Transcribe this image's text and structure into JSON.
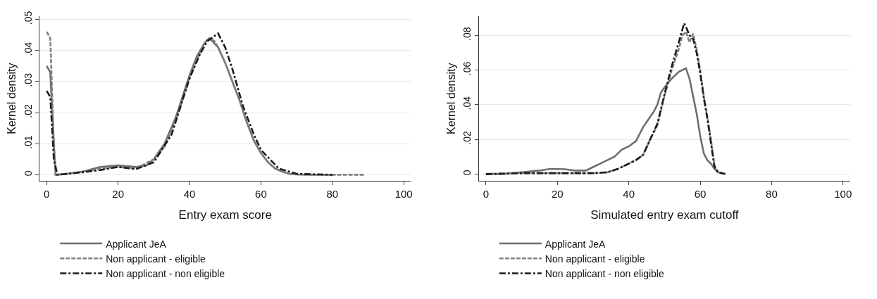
{
  "chart_data": [
    {
      "type": "line",
      "xlabel": "Entry exam score",
      "ylabel": "Kernel density",
      "xlim": [
        -2,
        102
      ],
      "ylim": [
        -0.002,
        0.051
      ],
      "xticks": [
        0,
        20,
        40,
        60,
        80,
        100
      ],
      "yticks": [
        0,
        {
          "value": 0.01,
          "label": ".01"
        },
        {
          "value": 0.02,
          "label": ".02"
        },
        {
          "value": 0.03,
          "label": ".03"
        },
        {
          "value": 0.04,
          "label": ".04"
        },
        {
          "value": 0.05,
          "label": ".05"
        }
      ],
      "grid": "y",
      "legend": "bottom",
      "series": [
        {
          "name": "Applicant JeA",
          "color": "#6e6e6e",
          "line_style": "solid",
          "x": [
            0,
            1,
            2,
            2.5,
            5,
            10,
            15,
            20,
            25,
            28,
            30,
            33,
            36,
            38,
            40,
            42,
            44,
            45,
            46,
            48,
            50,
            52,
            54,
            56,
            58,
            60,
            62,
            64,
            66,
            68,
            70,
            75,
            80
          ],
          "values": [
            0.035,
            0.033,
            0.01,
            0,
            0.0002,
            0.001,
            0.0025,
            0.003,
            0.0025,
            0.003,
            0.005,
            0.01,
            0.018,
            0.025,
            0.032,
            0.038,
            0.042,
            0.0435,
            0.0435,
            0.041,
            0.036,
            0.03,
            0.024,
            0.017,
            0.011,
            0.007,
            0.004,
            0.002,
            0.001,
            0.0003,
            0.0001,
            0,
            0
          ]
        },
        {
          "name": "Non applicant - eligible",
          "color": "#808080",
          "line_style": "dashed",
          "x": [
            0,
            1,
            2,
            2.5,
            5,
            10,
            15,
            20,
            25,
            30,
            33,
            36,
            38,
            40,
            42,
            44,
            45.5,
            47,
            48,
            50,
            52,
            54,
            56,
            58,
            60,
            62,
            64,
            66,
            68,
            70,
            75,
            80,
            89
          ],
          "values": [
            0.046,
            0.044,
            0.01,
            0,
            0.0002,
            0.001,
            0.002,
            0.0025,
            0.002,
            0.005,
            0.009,
            0.017,
            0.024,
            0.031,
            0.037,
            0.042,
            0.044,
            0.043,
            0.041,
            0.036,
            0.03,
            0.024,
            0.017,
            0.011,
            0.007,
            0.004,
            0.002,
            0.001,
            0.0003,
            0.0001,
            0,
            0,
            0
          ]
        },
        {
          "name": "Non applicant - non eligible",
          "color": "#1c1c1c",
          "line_style": "dashdot",
          "x": [
            0,
            1,
            2,
            3,
            5,
            10,
            15,
            20,
            25,
            30,
            35,
            40,
            43,
            45,
            48,
            50,
            52,
            55,
            58,
            60,
            65,
            70,
            80
          ],
          "values": [
            0.027,
            0.025,
            0.005,
            0,
            0.0002,
            0.0008,
            0.0015,
            0.0025,
            0.0018,
            0.004,
            0.013,
            0.031,
            0.039,
            0.043,
            0.0455,
            0.041,
            0.034,
            0.022,
            0.013,
            0.008,
            0.002,
            0.0003,
            0
          ]
        }
      ]
    },
    {
      "type": "line",
      "xlabel": "Simulated entry exam cutoff",
      "ylabel": "Kernel density",
      "xlim": [
        -2,
        102
      ],
      "ylim": [
        -0.004,
        0.091
      ],
      "xticks": [
        0,
        20,
        40,
        60,
        80,
        100
      ],
      "yticks": [
        0,
        {
          "value": 0.02,
          "label": ".02"
        },
        {
          "value": 0.04,
          "label": ".04"
        },
        {
          "value": 0.06,
          "label": ".06"
        },
        {
          "value": 0.08,
          "label": ".08"
        }
      ],
      "grid": "y",
      "legend": "bottom",
      "series": [
        {
          "name": "Applicant JeA",
          "color": "#6e6e6e",
          "line_style": "solid",
          "x": [
            0,
            5,
            10,
            15,
            18,
            22,
            25,
            28,
            30,
            33,
            36,
            38,
            40,
            42,
            44,
            46,
            47,
            48,
            49,
            50,
            52,
            54,
            56,
            57,
            58,
            59,
            60,
            61,
            62,
            63,
            64,
            65,
            67
          ],
          "values": [
            0,
            0,
            0.001,
            0.002,
            0.003,
            0.0028,
            0.002,
            0.002,
            0.004,
            0.007,
            0.01,
            0.014,
            0.016,
            0.019,
            0.027,
            0.033,
            0.036,
            0.04,
            0.047,
            0.05,
            0.055,
            0.059,
            0.061,
            0.055,
            0.045,
            0.035,
            0.022,
            0.012,
            0.008,
            0.006,
            0.003,
            0.001,
            0
          ]
        },
        {
          "name": "Non applicant - eligible",
          "color": "#808080",
          "line_style": "dashed",
          "x": [
            0,
            10,
            20,
            30,
            34,
            37,
            40,
            42,
            44,
            46,
            48,
            50,
            52,
            54,
            55,
            56,
            57,
            58,
            59,
            60,
            61,
            62,
            63,
            64,
            65,
            67
          ],
          "values": [
            0,
            0.0005,
            0.0005,
            0.0005,
            0.001,
            0.003,
            0.006,
            0.008,
            0.011,
            0.02,
            0.028,
            0.045,
            0.06,
            0.072,
            0.08,
            0.082,
            0.076,
            0.081,
            0.072,
            0.06,
            0.045,
            0.033,
            0.02,
            0.005,
            0.001,
            0
          ]
        },
        {
          "name": "Non applicant - non eligible",
          "color": "#1c1c1c",
          "line_style": "dashdot",
          "x": [
            0,
            10,
            20,
            30,
            34,
            37,
            40,
            42,
            44,
            46,
            48,
            50,
            52,
            54,
            55.5,
            56,
            57,
            58,
            59,
            60,
            61,
            62,
            63,
            64,
            65,
            67
          ],
          "values": [
            0,
            0.0005,
            0.0005,
            0.0005,
            0.001,
            0.003,
            0.006,
            0.008,
            0.011,
            0.02,
            0.029,
            0.046,
            0.062,
            0.076,
            0.087,
            0.085,
            0.08,
            0.078,
            0.07,
            0.058,
            0.044,
            0.032,
            0.018,
            0.004,
            0.001,
            0
          ]
        }
      ]
    }
  ]
}
